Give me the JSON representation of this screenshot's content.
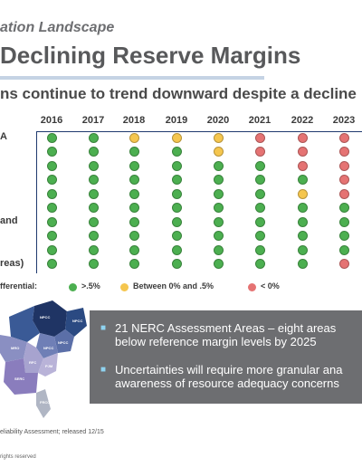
{
  "header": {
    "section_label": "ation Landscape",
    "title": "Declining Reserve Margins",
    "subtitle": "ns continue to trend downward despite a decline"
  },
  "chart_data": {
    "type": "table",
    "columns": [
      "2016",
      "2017",
      "2018",
      "2019",
      "2020",
      "2021",
      "2022",
      "2023"
    ],
    "rows": [
      {
        "label": "A",
        "status": [
          "green",
          "green",
          "yellow",
          "yellow",
          "yellow",
          "red",
          "red",
          "red"
        ]
      },
      {
        "label": "",
        "status": [
          "green",
          "green",
          "green",
          "green",
          "yellow",
          "red",
          "red",
          "red"
        ]
      },
      {
        "label": "",
        "status": [
          "green",
          "green",
          "green",
          "green",
          "green",
          "green",
          "red",
          "red"
        ]
      },
      {
        "label": "",
        "status": [
          "green",
          "green",
          "green",
          "green",
          "green",
          "green",
          "green",
          "red"
        ]
      },
      {
        "label": "",
        "status": [
          "green",
          "green",
          "green",
          "green",
          "green",
          "green",
          "yellow",
          "red"
        ]
      },
      {
        "label": "",
        "status": [
          "green",
          "green",
          "green",
          "green",
          "green",
          "green",
          "green",
          "green"
        ]
      },
      {
        "label": "and",
        "status": [
          "green",
          "green",
          "green",
          "green",
          "green",
          "green",
          "green",
          "green"
        ]
      },
      {
        "label": "",
        "status": [
          "green",
          "green",
          "green",
          "green",
          "green",
          "green",
          "green",
          "green"
        ]
      },
      {
        "label": "",
        "status": [
          "green",
          "green",
          "green",
          "green",
          "green",
          "green",
          "green",
          "green"
        ]
      },
      {
        "label": "reas)",
        "status": [
          "green",
          "green",
          "green",
          "green",
          "green",
          "green",
          "green",
          "red"
        ]
      }
    ],
    "legend": {
      "title": "fferential:",
      "items": [
        {
          "label": ">.5%",
          "status": "green"
        },
        {
          "label": "Between 0% and .5%",
          "status": "yellow"
        },
        {
          "label": "< 0%",
          "status": "red"
        }
      ]
    },
    "colors": {
      "green": "#4caf50",
      "yellow": "#f5c64e",
      "red": "#e57373"
    }
  },
  "map": {
    "regions": [
      "NPCC Quebec",
      "NPCC Maritimes",
      "NPCC New England",
      "NPCC New York",
      "MRO",
      "RFC",
      "SERC",
      "FRCC",
      "PJM"
    ]
  },
  "callout": {
    "bullets": [
      "21 NERC Assessment Areas – eight areas\nbelow reference margin levels by 2025",
      "Uncertainties will require more granular ana\nawareness of resource adequacy concerns"
    ]
  },
  "footer": {
    "source": "eliability Assessment; released 12/15",
    "copyright": "rights reserved"
  }
}
